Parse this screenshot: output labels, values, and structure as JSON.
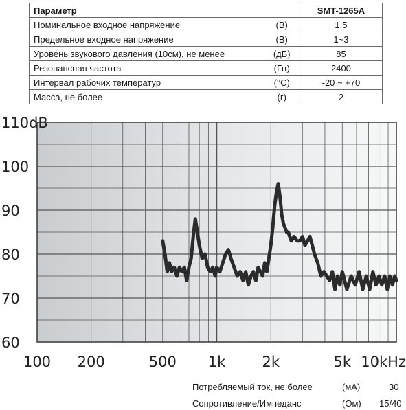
{
  "table": {
    "header": {
      "param": "Параметр",
      "model": "SMT-1265A"
    },
    "rows": [
      {
        "name": "Номинальное входное напряжение",
        "unit": "(В)",
        "value": "1,5"
      },
      {
        "name": "Предельное входное напряжение",
        "unit": "(В)",
        "value": "1~3"
      },
      {
        "name": "Уровень звукового давления (10см), не менее",
        "unit": "(дБ)",
        "value": "85"
      },
      {
        "name": "Резонансная частота",
        "unit": "(Гц)",
        "value": "2400"
      },
      {
        "name": "Интервал рабочих температур",
        "unit": "(°С)",
        "value": "-20 ~ +70"
      },
      {
        "name": "Масса, не более",
        "unit": "(г)",
        "value": "2"
      }
    ]
  },
  "chart_data": {
    "type": "line",
    "xscale": "log",
    "xlim": [
      100,
      10000
    ],
    "ylim": [
      60,
      110
    ],
    "y_ticks": [
      "110dB",
      "100",
      "90",
      "80",
      "70",
      "60"
    ],
    "x_ticks": [
      {
        "label": "100",
        "value": 100
      },
      {
        "label": "200",
        "value": 200
      },
      {
        "label": "500",
        "value": 500
      },
      {
        "label": "1k",
        "value": 1000
      },
      {
        "label": "2k",
        "value": 2000
      },
      {
        "label": "5k",
        "value": 5000
      },
      {
        "label": "10kHz",
        "value": 10000
      }
    ],
    "grid": true,
    "line_color": "#2b2b2b",
    "series": [
      {
        "x": [
          500,
          515,
          530,
          545,
          560,
          580,
          600,
          620,
          640,
          660,
          680,
          700,
          720,
          740,
          760,
          780,
          800,
          830,
          860,
          890,
          920,
          950,
          980,
          1000,
          1040,
          1080,
          1120,
          1160,
          1200,
          1250,
          1300,
          1350,
          1400,
          1450,
          1500,
          1550,
          1600,
          1650,
          1700,
          1750,
          1800,
          1850,
          1900,
          1950,
          2000,
          2050,
          2100,
          2150,
          2200,
          2250,
          2300,
          2350,
          2400,
          2450,
          2500,
          2600,
          2700,
          2800,
          2900,
          3000,
          3100,
          3200,
          3300,
          3400,
          3500,
          3650,
          3800,
          3950,
          4100,
          4250,
          4400,
          4550,
          4700,
          4850,
          5000,
          5300,
          5600,
          5900,
          6200,
          6500,
          6800,
          7100,
          7400,
          7700,
          8000,
          8300,
          8600,
          8900,
          9200,
          9500,
          9800,
          10000
        ],
        "y": [
          83,
          80,
          76,
          78,
          76,
          77,
          75,
          77,
          76,
          77,
          74,
          77,
          79,
          84,
          88,
          85,
          82,
          79,
          80,
          77,
          76,
          77,
          75,
          77,
          76,
          78,
          80,
          81,
          79,
          77,
          75,
          76,
          74,
          76,
          73,
          75,
          76,
          74,
          77,
          76,
          75,
          78,
          76,
          79,
          82,
          86,
          91,
          94,
          96,
          93,
          89,
          87,
          86,
          85,
          85,
          83,
          84,
          83,
          83,
          84,
          82,
          83,
          84,
          82,
          80,
          78,
          75,
          76,
          75,
          74,
          76,
          72,
          75,
          73,
          76,
          72,
          75,
          73,
          76,
          72,
          75,
          72,
          76,
          73,
          75,
          73,
          75,
          72,
          75,
          73,
          75,
          74
        ]
      }
    ]
  },
  "footer": [
    {
      "label": "Потребляемый ток, не более",
      "unit": "(мА)",
      "value": "30"
    },
    {
      "label": "Сопротивление/Импеданс",
      "unit": "(Ом)",
      "value": "15/40"
    }
  ]
}
